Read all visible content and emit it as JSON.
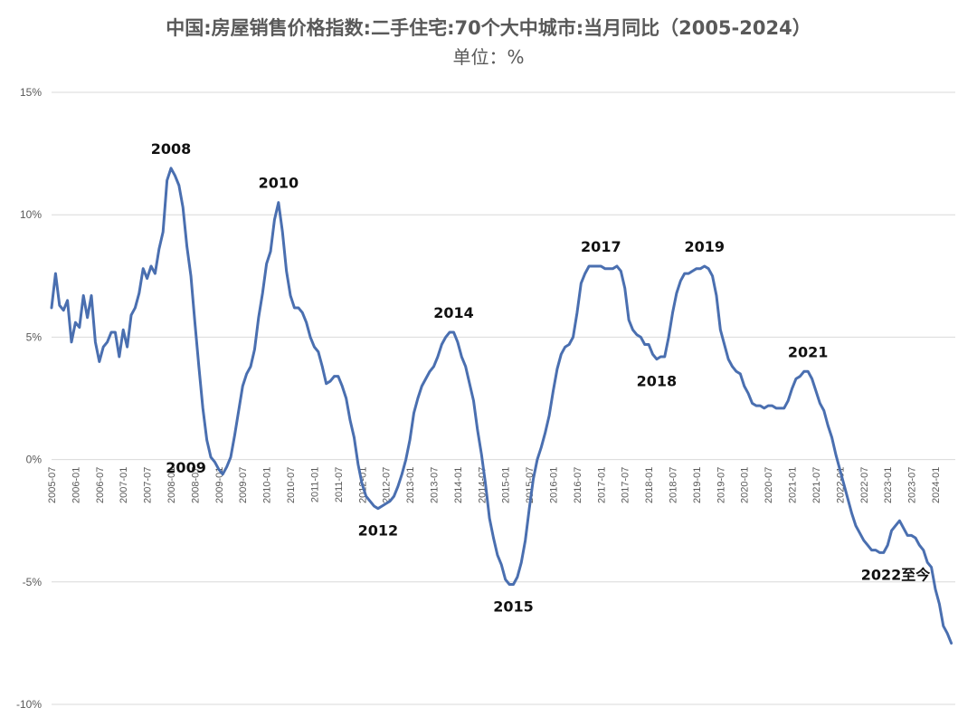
{
  "chart_data": {
    "type": "line",
    "title": "中国:房屋销售价格指数:二手住宅:70个大中城市:当月同比（2005-2024）",
    "subtitle": "单位：%",
    "ylim": [
      -10,
      15
    ],
    "yticks": [
      15,
      10,
      5,
      0,
      -5,
      -10
    ],
    "ytick_labels": [
      "15%",
      "10%",
      "5%",
      "0%",
      "-5%",
      "-10%"
    ],
    "grid": true,
    "legend": "none",
    "line_color": "#4a6fb0",
    "x_start": "2005-07",
    "x_end": "2024-06",
    "xtick_labels": [
      "2005-07",
      "2006-01",
      "2006-07",
      "2007-01",
      "2007-07",
      "2008-01",
      "2008-07",
      "2009-01",
      "2009-07",
      "2010-01",
      "2010-07",
      "2011-01",
      "2011-07",
      "2012-01",
      "2012-07",
      "2013-01",
      "2013-07",
      "2014-01",
      "2014-07",
      "2015-01",
      "2015-07",
      "2016-01",
      "2016-07",
      "2017-01",
      "2017-07",
      "2018-01",
      "2018-07",
      "2019-01",
      "2019-07",
      "2020-01",
      "2020-07",
      "2021-01",
      "2021-07",
      "2022-01",
      "2022-07",
      "2023-01",
      "2023-07",
      "2024-01"
    ],
    "series": [
      {
        "points": [
          [
            "2005-07",
            6.2
          ],
          [
            "2005-08",
            7.6
          ],
          [
            "2005-09",
            6.3
          ],
          [
            "2005-10",
            6.1
          ],
          [
            "2005-11",
            6.5
          ],
          [
            "2005-12",
            4.8
          ],
          [
            "2006-01",
            5.6
          ],
          [
            "2006-02",
            5.4
          ],
          [
            "2006-03",
            6.7
          ],
          [
            "2006-04",
            5.8
          ],
          [
            "2006-05",
            6.7
          ],
          [
            "2006-06",
            4.8
          ],
          [
            "2006-07",
            4.0
          ],
          [
            "2006-08",
            4.6
          ],
          [
            "2006-09",
            4.8
          ],
          [
            "2006-10",
            5.2
          ],
          [
            "2006-11",
            5.2
          ],
          [
            "2006-12",
            4.2
          ],
          [
            "2007-01",
            5.3
          ],
          [
            "2007-02",
            4.6
          ],
          [
            "2007-03",
            5.9
          ],
          [
            "2007-04",
            6.2
          ],
          [
            "2007-05",
            6.8
          ],
          [
            "2007-06",
            7.8
          ],
          [
            "2007-07",
            7.4
          ],
          [
            "2007-08",
            7.9
          ],
          [
            "2007-09",
            7.6
          ],
          [
            "2007-10",
            8.6
          ],
          [
            "2007-11",
            9.3
          ],
          [
            "2007-12",
            11.4
          ],
          [
            "2008-01",
            11.9
          ],
          [
            "2008-02",
            11.6
          ],
          [
            "2008-03",
            11.2
          ],
          [
            "2008-04",
            10.3
          ],
          [
            "2008-05",
            8.7
          ],
          [
            "2008-06",
            7.5
          ],
          [
            "2008-07",
            5.6
          ],
          [
            "2008-08",
            3.8
          ],
          [
            "2008-09",
            2.1
          ],
          [
            "2008-10",
            0.8
          ],
          [
            "2008-11",
            0.1
          ],
          [
            "2008-12",
            -0.1
          ],
          [
            "2009-01",
            -0.4
          ],
          [
            "2009-02",
            -0.6
          ],
          [
            "2009-03",
            -0.3
          ],
          [
            "2009-04",
            0.1
          ],
          [
            "2009-05",
            1.0
          ],
          [
            "2009-06",
            2.0
          ],
          [
            "2009-07",
            3.0
          ],
          [
            "2009-08",
            3.5
          ],
          [
            "2009-09",
            3.8
          ],
          [
            "2009-10",
            4.5
          ],
          [
            "2009-11",
            5.8
          ],
          [
            "2009-12",
            6.8
          ],
          [
            "2010-01",
            8.0
          ],
          [
            "2010-02",
            8.5
          ],
          [
            "2010-03",
            9.8
          ],
          [
            "2010-04",
            10.5
          ],
          [
            "2010-05",
            9.3
          ],
          [
            "2010-06",
            7.7
          ],
          [
            "2010-07",
            6.7
          ],
          [
            "2010-08",
            6.2
          ],
          [
            "2010-09",
            6.2
          ],
          [
            "2010-10",
            6.0
          ],
          [
            "2010-11",
            5.6
          ],
          [
            "2010-12",
            5.0
          ],
          [
            "2011-01",
            4.6
          ],
          [
            "2011-02",
            4.4
          ],
          [
            "2011-03",
            3.8
          ],
          [
            "2011-04",
            3.1
          ],
          [
            "2011-05",
            3.2
          ],
          [
            "2011-06",
            3.4
          ],
          [
            "2011-07",
            3.4
          ],
          [
            "2011-08",
            3.0
          ],
          [
            "2011-09",
            2.5
          ],
          [
            "2011-10",
            1.6
          ],
          [
            "2011-11",
            0.9
          ],
          [
            "2011-12",
            -0.2
          ],
          [
            "2012-01",
            -1.0
          ],
          [
            "2012-02",
            -1.5
          ],
          [
            "2012-03",
            -1.7
          ],
          [
            "2012-04",
            -1.9
          ],
          [
            "2012-05",
            -2.0
          ],
          [
            "2012-06",
            -1.9
          ],
          [
            "2012-07",
            -1.8
          ],
          [
            "2012-08",
            -1.7
          ],
          [
            "2012-09",
            -1.5
          ],
          [
            "2012-10",
            -1.1
          ],
          [
            "2012-11",
            -0.6
          ],
          [
            "2012-12",
            0.0
          ],
          [
            "2013-01",
            0.8
          ],
          [
            "2013-02",
            1.9
          ],
          [
            "2013-03",
            2.5
          ],
          [
            "2013-04",
            3.0
          ],
          [
            "2013-05",
            3.3
          ],
          [
            "2013-06",
            3.6
          ],
          [
            "2013-07",
            3.8
          ],
          [
            "2013-08",
            4.2
          ],
          [
            "2013-09",
            4.7
          ],
          [
            "2013-10",
            5.0
          ],
          [
            "2013-11",
            5.2
          ],
          [
            "2013-12",
            5.2
          ],
          [
            "2014-01",
            4.8
          ],
          [
            "2014-02",
            4.2
          ],
          [
            "2014-03",
            3.8
          ],
          [
            "2014-04",
            3.1
          ],
          [
            "2014-05",
            2.4
          ],
          [
            "2014-06",
            1.2
          ],
          [
            "2014-07",
            0.2
          ],
          [
            "2014-08",
            -1.0
          ],
          [
            "2014-09",
            -2.4
          ],
          [
            "2014-10",
            -3.2
          ],
          [
            "2014-11",
            -3.9
          ],
          [
            "2014-12",
            -4.3
          ],
          [
            "2015-01",
            -4.9
          ],
          [
            "2015-02",
            -5.1
          ],
          [
            "2015-03",
            -5.1
          ],
          [
            "2015-04",
            -4.8
          ],
          [
            "2015-05",
            -4.2
          ],
          [
            "2015-06",
            -3.3
          ],
          [
            "2015-07",
            -2.0
          ],
          [
            "2015-08",
            -0.8
          ],
          [
            "2015-09",
            0.0
          ],
          [
            "2015-10",
            0.5
          ],
          [
            "2015-11",
            1.1
          ],
          [
            "2015-12",
            1.8
          ],
          [
            "2016-01",
            2.8
          ],
          [
            "2016-02",
            3.7
          ],
          [
            "2016-03",
            4.3
          ],
          [
            "2016-04",
            4.6
          ],
          [
            "2016-05",
            4.7
          ],
          [
            "2016-06",
            5.0
          ],
          [
            "2016-07",
            6.0
          ],
          [
            "2016-08",
            7.2
          ],
          [
            "2016-09",
            7.6
          ],
          [
            "2016-10",
            7.9
          ],
          [
            "2016-11",
            7.9
          ],
          [
            "2016-12",
            7.9
          ],
          [
            "2017-01",
            7.9
          ],
          [
            "2017-02",
            7.8
          ],
          [
            "2017-03",
            7.8
          ],
          [
            "2017-04",
            7.8
          ],
          [
            "2017-05",
            7.9
          ],
          [
            "2017-06",
            7.7
          ],
          [
            "2017-07",
            7.0
          ],
          [
            "2017-08",
            5.7
          ],
          [
            "2017-09",
            5.3
          ],
          [
            "2017-10",
            5.1
          ],
          [
            "2017-11",
            5.0
          ],
          [
            "2017-12",
            4.7
          ],
          [
            "2018-01",
            4.7
          ],
          [
            "2018-02",
            4.3
          ],
          [
            "2018-03",
            4.1
          ],
          [
            "2018-04",
            4.2
          ],
          [
            "2018-05",
            4.2
          ],
          [
            "2018-06",
            5.0
          ],
          [
            "2018-07",
            6.0
          ],
          [
            "2018-08",
            6.8
          ],
          [
            "2018-09",
            7.3
          ],
          [
            "2018-10",
            7.6
          ],
          [
            "2018-11",
            7.6
          ],
          [
            "2018-12",
            7.7
          ],
          [
            "2019-01",
            7.8
          ],
          [
            "2019-02",
            7.8
          ],
          [
            "2019-03",
            7.9
          ],
          [
            "2019-04",
            7.8
          ],
          [
            "2019-05",
            7.5
          ],
          [
            "2019-06",
            6.7
          ],
          [
            "2019-07",
            5.3
          ],
          [
            "2019-08",
            4.7
          ],
          [
            "2019-09",
            4.1
          ],
          [
            "2019-10",
            3.8
          ],
          [
            "2019-11",
            3.6
          ],
          [
            "2019-12",
            3.5
          ],
          [
            "2020-01",
            3.0
          ],
          [
            "2020-02",
            2.7
          ],
          [
            "2020-03",
            2.3
          ],
          [
            "2020-04",
            2.2
          ],
          [
            "2020-05",
            2.2
          ],
          [
            "2020-06",
            2.1
          ],
          [
            "2020-07",
            2.2
          ],
          [
            "2020-08",
            2.2
          ],
          [
            "2020-09",
            2.1
          ],
          [
            "2020-10",
            2.1
          ],
          [
            "2020-11",
            2.1
          ],
          [
            "2020-12",
            2.4
          ],
          [
            "2021-01",
            2.9
          ],
          [
            "2021-02",
            3.3
          ],
          [
            "2021-03",
            3.4
          ],
          [
            "2021-04",
            3.6
          ],
          [
            "2021-05",
            3.6
          ],
          [
            "2021-06",
            3.3
          ],
          [
            "2021-07",
            2.8
          ],
          [
            "2021-08",
            2.3
          ],
          [
            "2021-09",
            2.0
          ],
          [
            "2021-10",
            1.4
          ],
          [
            "2021-11",
            0.9
          ],
          [
            "2021-12",
            0.2
          ],
          [
            "2022-01",
            -0.4
          ],
          [
            "2022-02",
            -1.0
          ],
          [
            "2022-03",
            -1.6
          ],
          [
            "2022-04",
            -2.2
          ],
          [
            "2022-05",
            -2.7
          ],
          [
            "2022-06",
            -3.0
          ],
          [
            "2022-07",
            -3.3
          ],
          [
            "2022-08",
            -3.5
          ],
          [
            "2022-09",
            -3.7
          ],
          [
            "2022-10",
            -3.7
          ],
          [
            "2022-11",
            -3.8
          ],
          [
            "2022-12",
            -3.8
          ],
          [
            "2023-01",
            -3.5
          ],
          [
            "2023-02",
            -2.9
          ],
          [
            "2023-03",
            -2.7
          ],
          [
            "2023-04",
            -2.5
          ],
          [
            "2023-05",
            -2.8
          ],
          [
            "2023-06",
            -3.1
          ],
          [
            "2023-07",
            -3.1
          ],
          [
            "2023-08",
            -3.2
          ],
          [
            "2023-09",
            -3.5
          ],
          [
            "2023-10",
            -3.7
          ],
          [
            "2023-11",
            -4.2
          ],
          [
            "2023-12",
            -4.4
          ],
          [
            "2024-01",
            -5.3
          ],
          [
            "2024-02",
            -5.9
          ],
          [
            "2024-03",
            -6.8
          ],
          [
            "2024-04",
            -7.1
          ],
          [
            "2024-05",
            -7.5
          ]
        ]
      }
    ],
    "annotations": [
      {
        "text": "2008",
        "x": "2008-01",
        "y": 11.9,
        "position": "above"
      },
      {
        "text": "2009",
        "x": "2009-01",
        "y": -0.6,
        "position": "left"
      },
      {
        "text": "2010",
        "x": "2010-04",
        "y": 10.5,
        "position": "above"
      },
      {
        "text": "2012",
        "x": "2012-05",
        "y": -2.0,
        "position": "below"
      },
      {
        "text": "2014",
        "x": "2013-12",
        "y": 5.2,
        "position": "above"
      },
      {
        "text": "2015",
        "x": "2015-03",
        "y": -5.1,
        "position": "below"
      },
      {
        "text": "2017",
        "x": "2017-01",
        "y": 7.9,
        "position": "above"
      },
      {
        "text": "2018",
        "x": "2018-03",
        "y": 4.1,
        "position": "below"
      },
      {
        "text": "2019",
        "x": "2019-03",
        "y": 7.9,
        "position": "above"
      },
      {
        "text": "2021",
        "x": "2021-05",
        "y": 3.6,
        "position": "above"
      },
      {
        "text": "2022至今",
        "x": "2023-03",
        "y": -3.8,
        "position": "below"
      }
    ]
  }
}
